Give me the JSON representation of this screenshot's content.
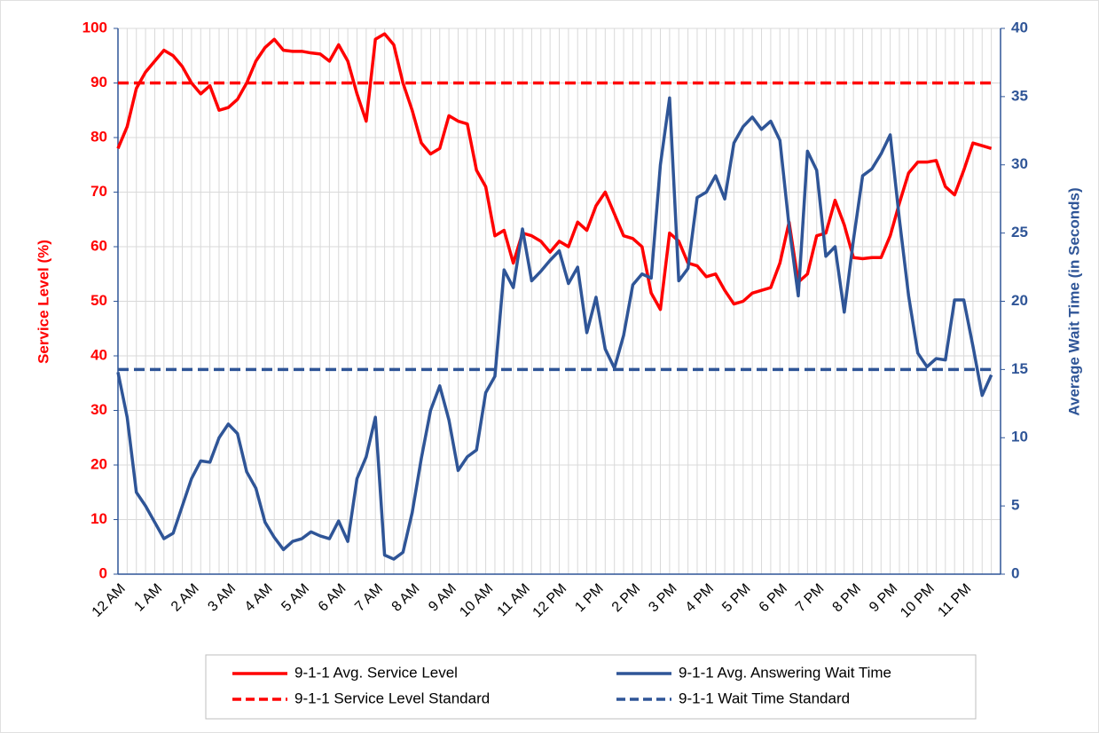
{
  "chart_data": {
    "type": "line",
    "y_label": "Service Level (%)",
    "y2_label": "Average Wait Time (in Seconds)",
    "categories": [
      "12 AM",
      null,
      null,
      null,
      "1 AM",
      null,
      null,
      null,
      "2 AM",
      null,
      null,
      null,
      "3 AM",
      null,
      null,
      null,
      "4 AM",
      null,
      null,
      null,
      "5 AM",
      null,
      null,
      null,
      "6 AM",
      null,
      null,
      null,
      "7 AM",
      null,
      null,
      null,
      "8 AM",
      null,
      null,
      null,
      "9 AM",
      null,
      null,
      null,
      "10 AM",
      null,
      null,
      null,
      "11 AM",
      null,
      null,
      null,
      "12 PM",
      null,
      null,
      null,
      "1 PM",
      null,
      null,
      null,
      "2 PM",
      null,
      null,
      null,
      "3 PM",
      null,
      null,
      null,
      "4 PM",
      null,
      null,
      null,
      "5 PM",
      null,
      null,
      null,
      "6 PM",
      null,
      null,
      null,
      "7 PM",
      null,
      null,
      null,
      "8 PM",
      null,
      null,
      null,
      "9 PM",
      null,
      null,
      null,
      "10 PM",
      null,
      null,
      null,
      "11 PM",
      null,
      null,
      null
    ],
    "series": [
      {
        "name": "9-1-1 Avg. Service Level",
        "color": "#ff0000",
        "axis": "y",
        "values": [
          78,
          82,
          89,
          92,
          94,
          96,
          95,
          93,
          90,
          88,
          89.5,
          85,
          85.5,
          87,
          90,
          94,
          96.5,
          98,
          96,
          95.8,
          95.8,
          95.5,
          95.3,
          94,
          97,
          94,
          88,
          83,
          98,
          99,
          97,
          90,
          85,
          79,
          77,
          78,
          84,
          83,
          82.5,
          74,
          71,
          62,
          63,
          57,
          62.5,
          62,
          61,
          59,
          61,
          60,
          64.5,
          63,
          67.5,
          70,
          66,
          62,
          61.5,
          60,
          51.5,
          48.5,
          62.5,
          61,
          57,
          56.5,
          54.5,
          55,
          52,
          49.5,
          50,
          51.5,
          52,
          52.5,
          57,
          64.5,
          53.5,
          55,
          62,
          62.5,
          68.5,
          64,
          58,
          57.8,
          58,
          58,
          62,
          68,
          73.5,
          75.5,
          75.5,
          75.8,
          71,
          69.5,
          74,
          79,
          78.5,
          78
        ]
      },
      {
        "name": "9-1-1 Avg. Answering Wait Time",
        "color": "#2f5597",
        "axis": "y2",
        "values": [
          14.8,
          11.5,
          6,
          5,
          3.8,
          2.6,
          3,
          5,
          7,
          8.3,
          8.2,
          10,
          11,
          10.3,
          7.5,
          6.3,
          3.8,
          2.7,
          1.8,
          2.4,
          2.6,
          3.1,
          2.8,
          2.6,
          3.9,
          2.4,
          7,
          8.6,
          11.5,
          1.4,
          1.1,
          1.6,
          4.5,
          8.5,
          12,
          13.8,
          11.3,
          7.6,
          8.6,
          9.1,
          13.3,
          14.5,
          22.3,
          21,
          25.3,
          21.5,
          22.2,
          23,
          23.7,
          21.3,
          22.5,
          17.7,
          20.3,
          16.5,
          15.1,
          17.5,
          21.2,
          22,
          21.7,
          30,
          34.9,
          21.5,
          22.4,
          27.6,
          28,
          29.2,
          27.5,
          31.6,
          32.8,
          33.5,
          32.6,
          33.2,
          31.8,
          25.5,
          20.4,
          31,
          29.6,
          23.3,
          24,
          19.2,
          24.5,
          29.2,
          29.7,
          30.8,
          32.2,
          26,
          20.4,
          16.2,
          15.2,
          15.8,
          15.7,
          20.1,
          20.1,
          16.7,
          13.1,
          14.6
        ]
      }
    ],
    "reference_lines": [
      {
        "name": "9-1-1 Service Level Standard",
        "color": "#ff0000",
        "axis": "y",
        "value": 90
      },
      {
        "name": "9-1-1 Wait Time Standard",
        "color": "#2f5597",
        "axis": "y2",
        "value": 15
      }
    ],
    "ylim": [
      0,
      100
    ],
    "yticks": [
      0,
      10,
      20,
      30,
      40,
      50,
      60,
      70,
      80,
      90,
      100
    ],
    "y2lim": [
      0,
      40
    ],
    "y2ticks": [
      0,
      5,
      10,
      15,
      20,
      25,
      30,
      35,
      40
    ],
    "grid": true
  }
}
